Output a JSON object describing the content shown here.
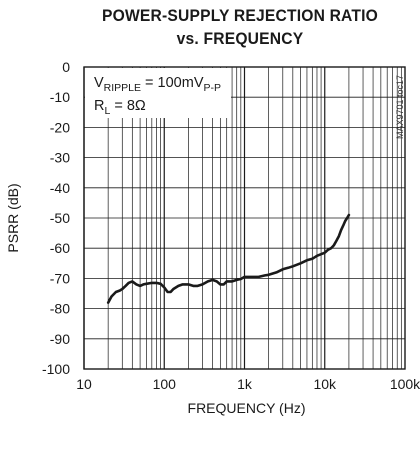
{
  "chart_data": {
    "type": "line",
    "title": "POWER-SUPPLY REJECTION RATIO",
    "subtitle": "vs. FREQUENCY",
    "xlabel": "FREQUENCY (Hz)",
    "ylabel": "PSRR (dB)",
    "xscale": "log",
    "xlim": [
      10,
      100000
    ],
    "ylim": [
      -100,
      0
    ],
    "grid": true,
    "xticks": [
      {
        "value": 10,
        "label": "10"
      },
      {
        "value": 100,
        "label": "100"
      },
      {
        "value": 1000,
        "label": "1k"
      },
      {
        "value": 10000,
        "label": "10k"
      },
      {
        "value": 100000,
        "label": "100k"
      }
    ],
    "yticks": [
      0,
      -10,
      -20,
      -30,
      -40,
      -50,
      -60,
      -70,
      -80,
      -90,
      -100
    ],
    "annotation": {
      "line1_base": "V",
      "line1_sub": "RIPPLE",
      "line1_mid": " = 100mV",
      "line1_sub2": "P-P",
      "line2_base": "R",
      "line2_sub": "L",
      "line2_rest": " = 8Ω"
    },
    "figure_code": "MAX9701 toc17",
    "series": [
      {
        "color": "#1a1a1a",
        "x": [
          20,
          22,
          25,
          28,
          30,
          33,
          36,
          40,
          45,
          50,
          55,
          60,
          70,
          80,
          90,
          100,
          110,
          120,
          130,
          150,
          170,
          200,
          230,
          260,
          300,
          350,
          400,
          450,
          500,
          550,
          600,
          700,
          800,
          900,
          1000,
          1200,
          1500,
          1800,
          2000,
          2500,
          3000,
          3500,
          4000,
          5000,
          6000,
          7000,
          8000,
          9000,
          10000,
          11000,
          12000,
          13000,
          14000,
          15000,
          16000,
          17000,
          18000,
          19000,
          20000
        ],
        "y": [
          -78,
          -76,
          -74.5,
          -74,
          -73.5,
          -72.5,
          -71.5,
          -71,
          -72,
          -72.5,
          -72,
          -71.8,
          -71.5,
          -71.5,
          -71.8,
          -73,
          -74.5,
          -74.5,
          -73.5,
          -72.5,
          -72,
          -72,
          -72.5,
          -72.5,
          -72,
          -71,
          -70.5,
          -71,
          -72,
          -72,
          -71,
          -71,
          -70.5,
          -70.2,
          -69.5,
          -69.5,
          -69.5,
          -69,
          -68.8,
          -68,
          -67,
          -66.5,
          -66,
          -65,
          -64,
          -63.5,
          -62.5,
          -62,
          -61.5,
          -60.5,
          -60,
          -59,
          -57.5,
          -56,
          -54,
          -52.5,
          -51,
          -50,
          -49
        ]
      }
    ]
  }
}
